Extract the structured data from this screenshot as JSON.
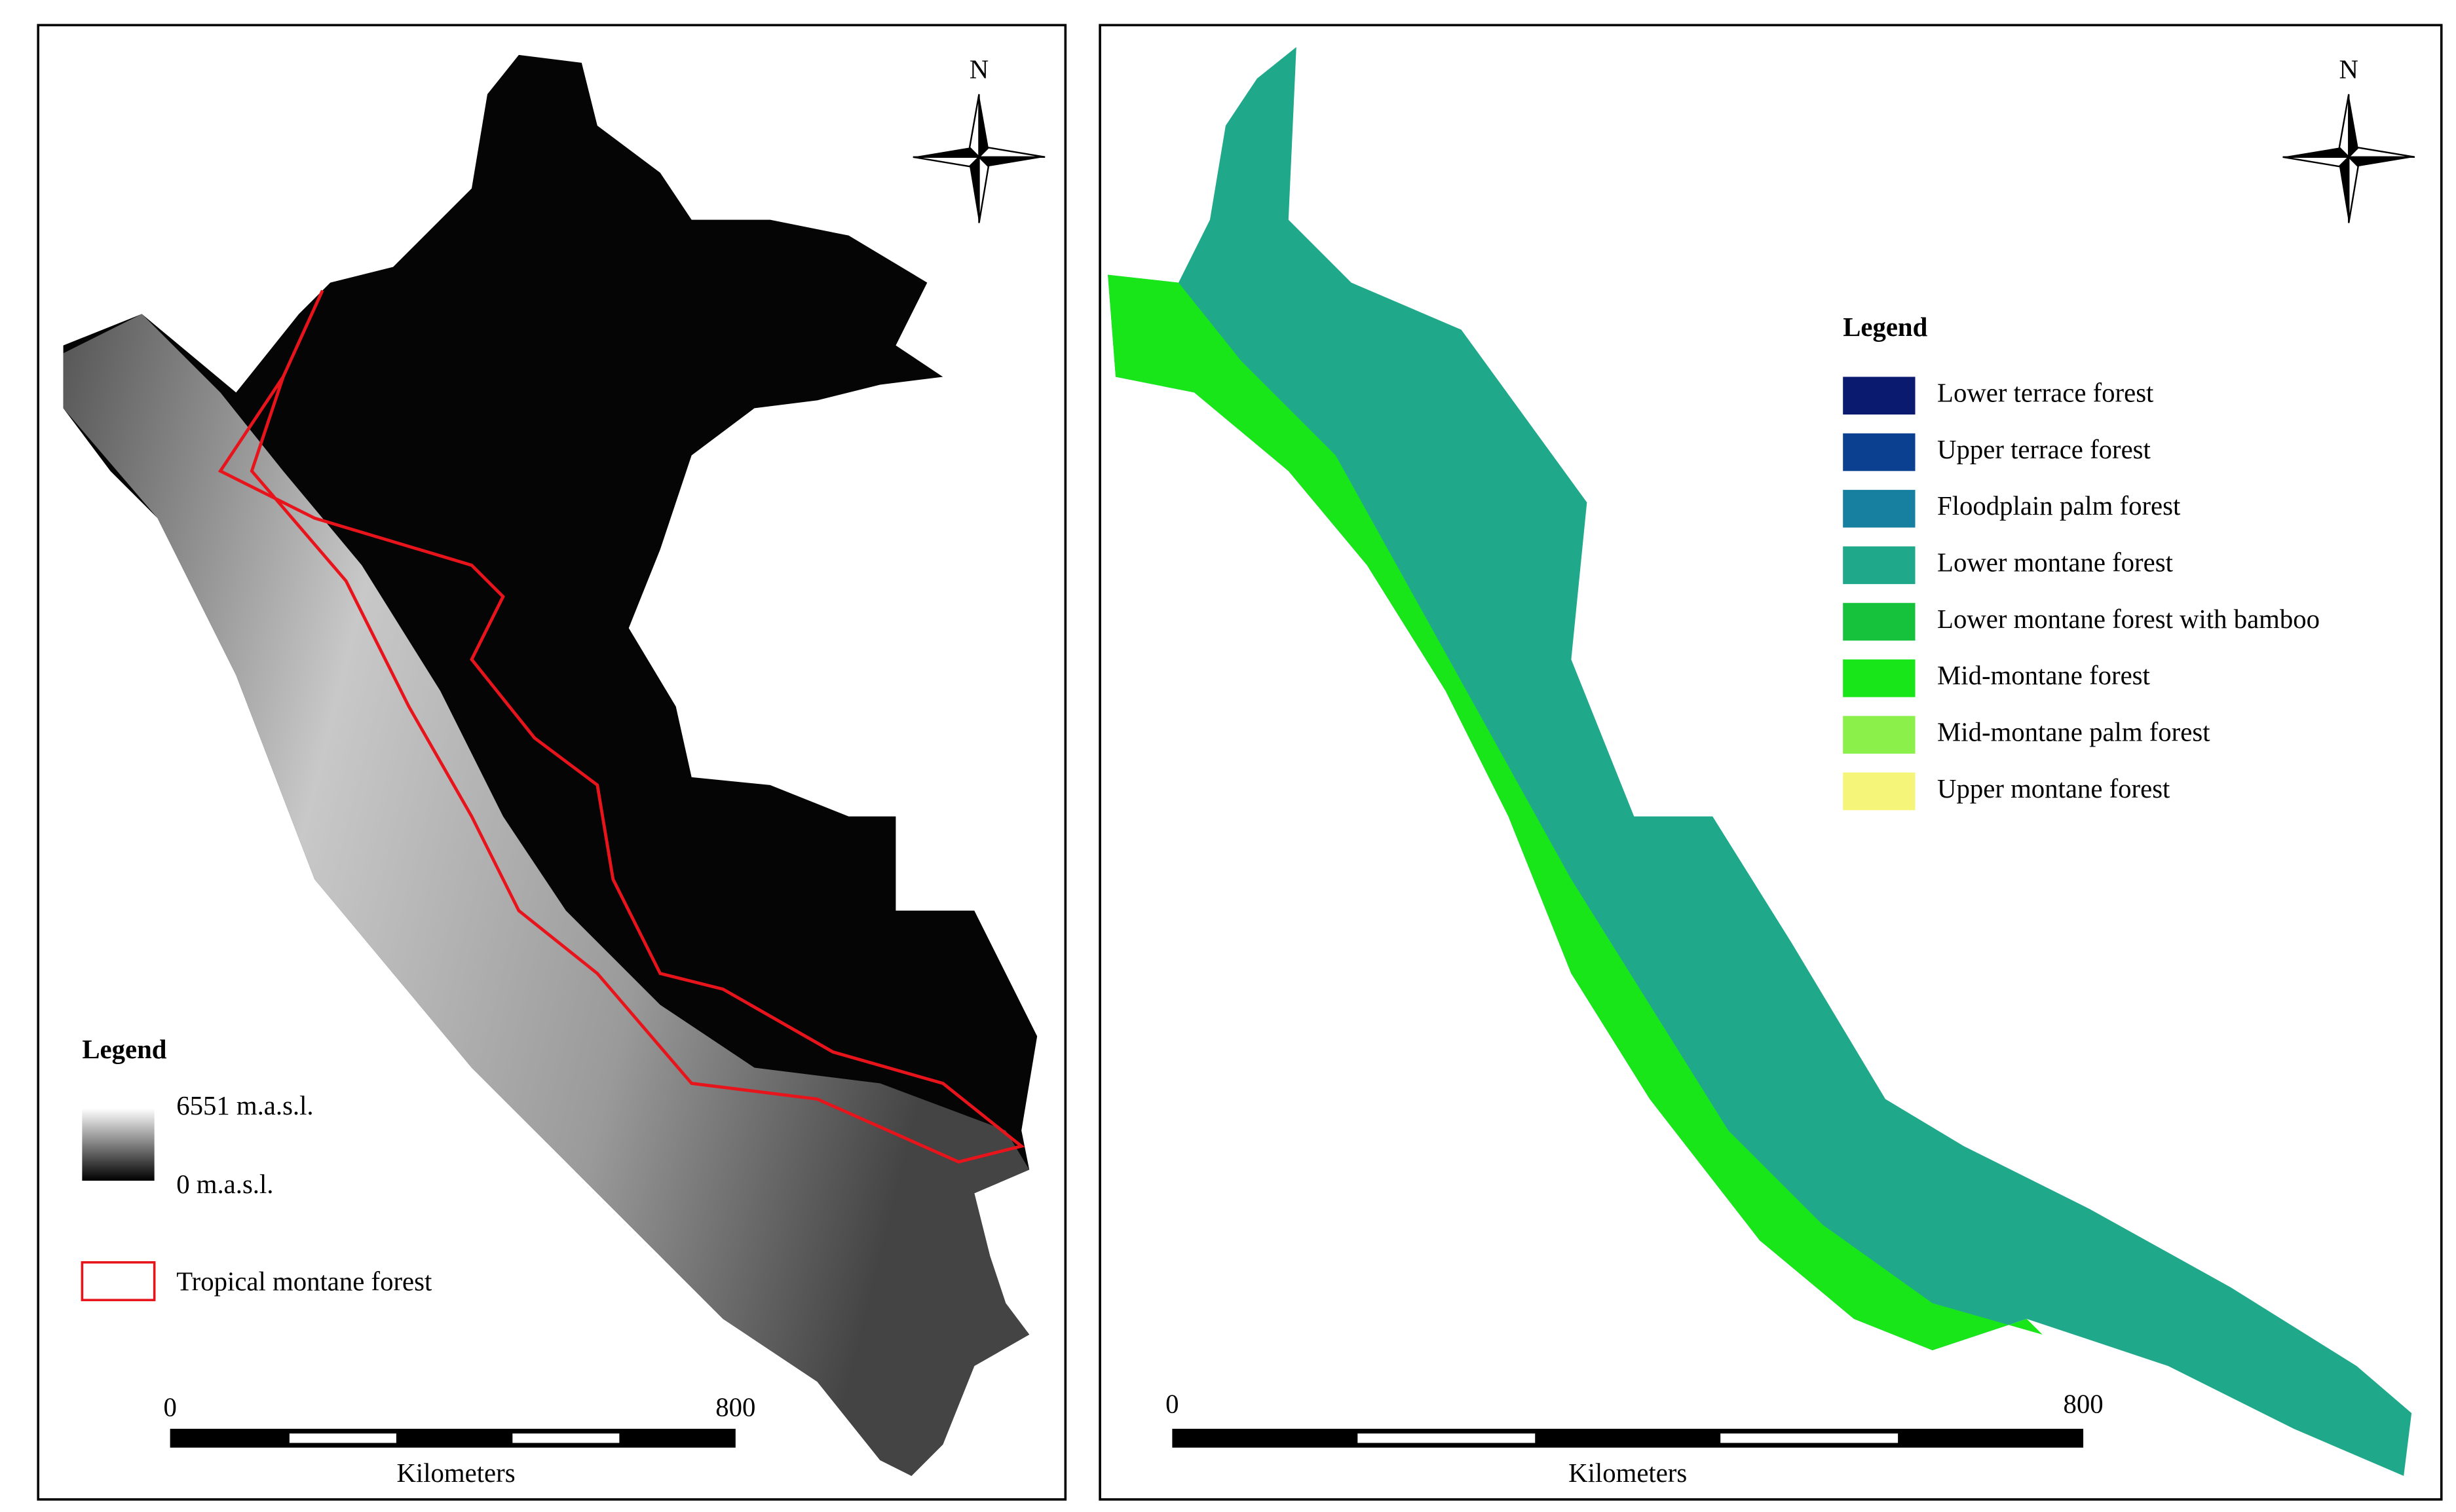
{
  "left_map": {
    "north": "N",
    "legend": {
      "title": "Legend",
      "elevation_max": "6551 m.a.s.l.",
      "elevation_min": "0 m.a.s.l.",
      "outline_item": "Tropical montane forest",
      "outline_color": "#e8141b"
    },
    "scale": {
      "start": "0",
      "end": "800",
      "unit": "Kilometers"
    }
  },
  "right_map": {
    "north": "N",
    "legend": {
      "title": "Legend",
      "items": [
        {
          "label": "Lower terrace forest",
          "color": "#0a1a6e"
        },
        {
          "label": "Upper terrace forest",
          "color": "#0b3f8f"
        },
        {
          "label": "Floodplain palm forest",
          "color": "#1780a0"
        },
        {
          "label": "Lower montane forest",
          "color": "#1fa98a"
        },
        {
          "label": "Lower montane forest with bamboo",
          "color": "#16c23c"
        },
        {
          "label": "Mid-montane forest",
          "color": "#19e619"
        },
        {
          "label": "Mid-montane palm forest",
          "color": "#8cf04a"
        },
        {
          "label": "Upper montane forest",
          "color": "#f5f57a"
        }
      ]
    },
    "scale": {
      "start": "0",
      "end": "800",
      "unit": "Kilometers"
    }
  }
}
